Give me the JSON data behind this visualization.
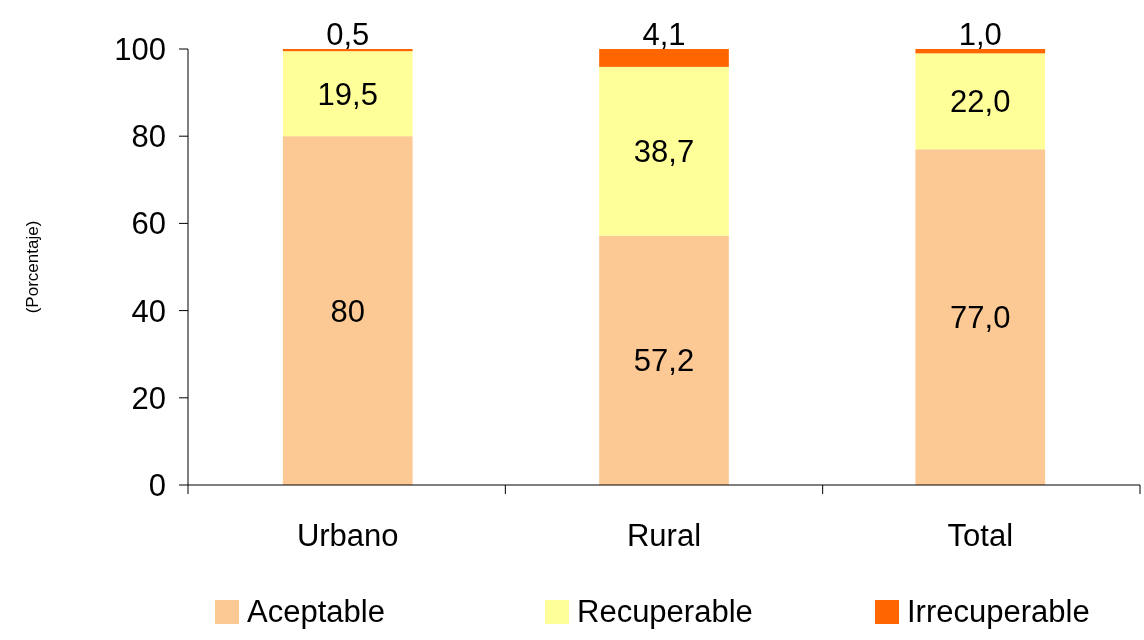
{
  "chart_data": {
    "type": "bar",
    "stacked": true,
    "ylabel": "(Porcentaje)",
    "categories": [
      "Urbano",
      "Rural",
      "Total"
    ],
    "series": [
      {
        "name": "Aceptable",
        "color": "#fcc994",
        "values": [
          80,
          57.2,
          77.0
        ],
        "value_labels": [
          "80",
          "57,2",
          "77,0"
        ]
      },
      {
        "name": "Recuperable",
        "color": "#ffff99",
        "values": [
          19.5,
          38.7,
          22.0
        ],
        "value_labels": [
          "19,5",
          "38,7",
          "22,0"
        ]
      },
      {
        "name": "Irrecuperable",
        "color": "#ff6600",
        "values": [
          0.5,
          4.1,
          1.0
        ],
        "value_labels": [
          "0,5",
          "4,1",
          "1,0"
        ]
      }
    ],
    "ylim": [
      0,
      100
    ],
    "yticks": [
      0,
      20,
      40,
      60,
      80,
      100
    ],
    "legend": "bottom"
  }
}
